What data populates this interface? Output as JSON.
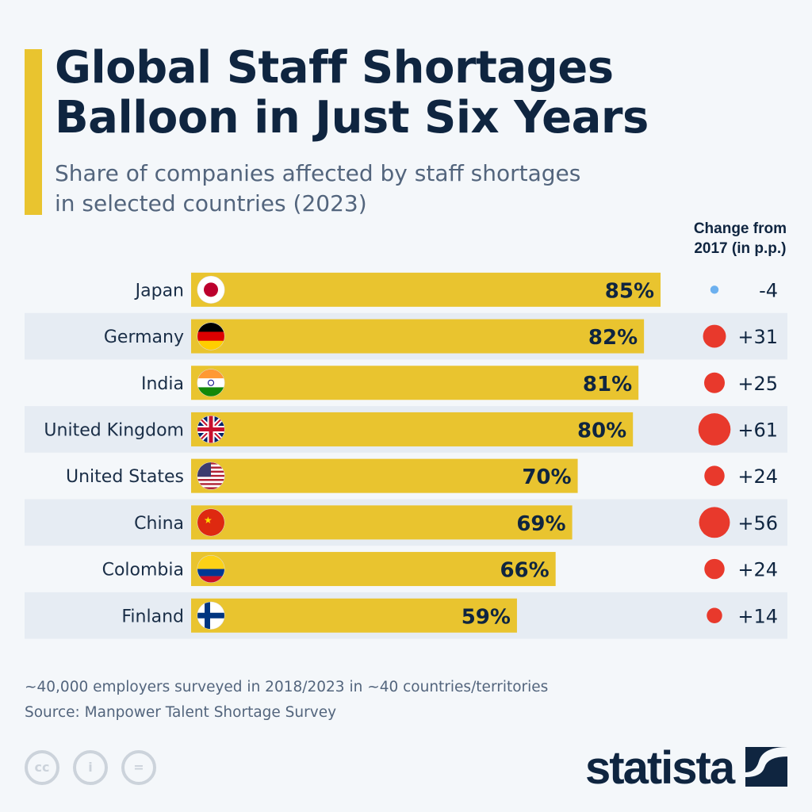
{
  "title_line1": "Global Staff Shortages",
  "title_line2": "Balloon in Just Six Years",
  "subtitle_line1": "Share of companies affected by staff shortages",
  "subtitle_line2": "in selected countries (2023)",
  "change_header_line1": "Change from",
  "change_header_line2": "2017 (in p.p.)",
  "chart_data": {
    "type": "bar",
    "orientation": "horizontal",
    "categories": [
      "Japan",
      "Germany",
      "India",
      "United Kingdom",
      "United States",
      "China",
      "Colombia",
      "Finland"
    ],
    "values": [
      85,
      82,
      81,
      80,
      70,
      69,
      66,
      59
    ],
    "value_labels": [
      "85%",
      "82%",
      "81%",
      "80%",
      "70%",
      "69%",
      "66%",
      "59%"
    ],
    "change": [
      -4,
      31,
      25,
      61,
      24,
      56,
      24,
      14
    ],
    "change_labels": [
      "-4",
      "+31",
      "+25",
      "+61",
      "+24",
      "+56",
      "+24",
      "+14"
    ],
    "xlim": [
      0,
      100
    ],
    "grid": false,
    "colors": {
      "bar": "#e9c42f",
      "positive": "#e8392c",
      "negative": "#6cb0ef",
      "row_band": "#e6ecf3"
    }
  },
  "footer": {
    "note": "~40,000 employers surveyed in 2018/2023 in ~40 countries/territories",
    "source": "Source: Manpower Talent Shortage Survey",
    "logo": "statista",
    "license_icons": [
      "cc-icon",
      "attribution-icon",
      "no-derivatives-icon"
    ]
  }
}
